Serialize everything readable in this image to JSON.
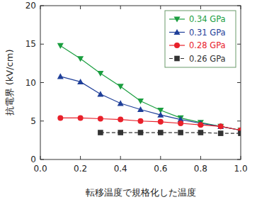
{
  "chart_data": {
    "type": "line",
    "x_label": "転移温度で規格化した温度",
    "y_label": "抗電界 (kV/cm)",
    "x": [
      0.1,
      0.2,
      0.3,
      0.4,
      0.5,
      0.6,
      0.7,
      0.8,
      0.9,
      1.0
    ],
    "series": [
      {
        "name": "0.34 GPa",
        "color": "#1a9e3f",
        "marker": "triangle-down",
        "line_style": "solid",
        "values": [
          14.8,
          13.1,
          11.2,
          9.5,
          7.6,
          6.4,
          5.4,
          4.8,
          4.3,
          3.8
        ]
      },
      {
        "name": "0.31 GPa",
        "color": "#1f3f99",
        "marker": "triangle-up",
        "line_style": "solid",
        "values": [
          10.8,
          10.1,
          8.5,
          7.3,
          6.5,
          5.8,
          5.2,
          4.7,
          4.3,
          3.8
        ]
      },
      {
        "name": "0.28 GPa",
        "color": "#e8202a",
        "marker": "circle",
        "line_style": "solid",
        "values": [
          5.4,
          5.4,
          5.3,
          5.2,
          5.0,
          4.9,
          4.7,
          4.5,
          4.3,
          3.8
        ]
      },
      {
        "name": "0.26 GPa",
        "color": "#333333",
        "marker": "square",
        "line_style": "dashed",
        "values": [
          null,
          null,
          3.5,
          3.5,
          3.5,
          3.5,
          3.5,
          3.5,
          3.4,
          3.4
        ]
      }
    ],
    "xlim": [
      0,
      1
    ],
    "xticks": [
      {
        "value": 0,
        "label": "0.0"
      },
      0.2,
      0.4,
      0.6,
      0.8,
      {
        "value": 1,
        "label": "1.0"
      }
    ],
    "ylim": [
      0,
      20
    ],
    "yticks": [
      0,
      5,
      10,
      15,
      20
    ],
    "grid": false,
    "legend": "upper right"
  }
}
